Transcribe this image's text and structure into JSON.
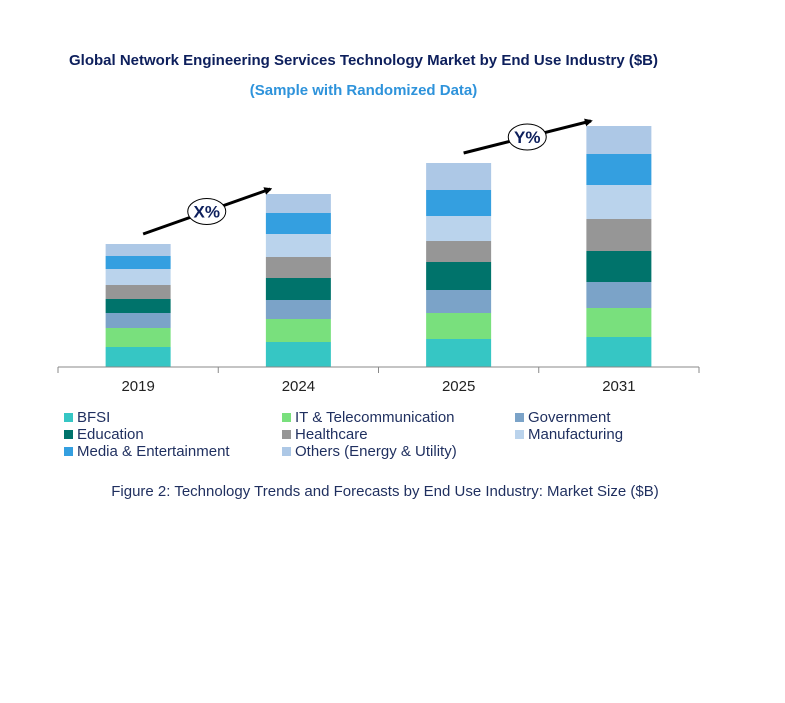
{
  "chart_data": {
    "type": "bar",
    "stacked": true,
    "title": "Global Network Engineering Services Technology Market by End Use Industry ($B)",
    "subtitle": "(Sample with Randomized Data)",
    "categories": [
      "2019",
      "2024",
      "2025",
      "2031"
    ],
    "series": [
      {
        "name": "BFSI",
        "color": "#36C6C4",
        "values": [
          20,
          25,
          28,
          30
        ]
      },
      {
        "name": "IT & Telecommunication",
        "color": "#79E07D",
        "values": [
          19,
          23,
          26,
          29
        ]
      },
      {
        "name": "Government",
        "color": "#7BA3C8",
        "values": [
          15,
          19,
          23,
          26
        ]
      },
      {
        "name": "Education",
        "color": "#00736B",
        "values": [
          14,
          22,
          28,
          31
        ]
      },
      {
        "name": "Healthcare",
        "color": "#969696",
        "values": [
          14,
          21,
          21,
          32
        ]
      },
      {
        "name": "Manufacturing",
        "color": "#BAD3EC",
        "values": [
          16,
          23,
          25,
          34
        ]
      },
      {
        "name": "Media & Entertainment",
        "color": "#349FE0",
        "values": [
          13,
          21,
          26,
          31
        ]
      },
      {
        "name": "Others (Energy & Utility)",
        "color": "#ADC8E6",
        "values": [
          12,
          19,
          27,
          28
        ]
      }
    ],
    "annotations": [
      {
        "label": "X%",
        "from": "2019",
        "to": "2024"
      },
      {
        "label": "Y%",
        "from": "2025",
        "to": "2031"
      }
    ],
    "y_axis_visible": false,
    "grid": false,
    "legend_position": "bottom",
    "caption": "Figure 2: Technology  Trends  and Forecasts by End Use Industry:  Market Size ($B)"
  }
}
